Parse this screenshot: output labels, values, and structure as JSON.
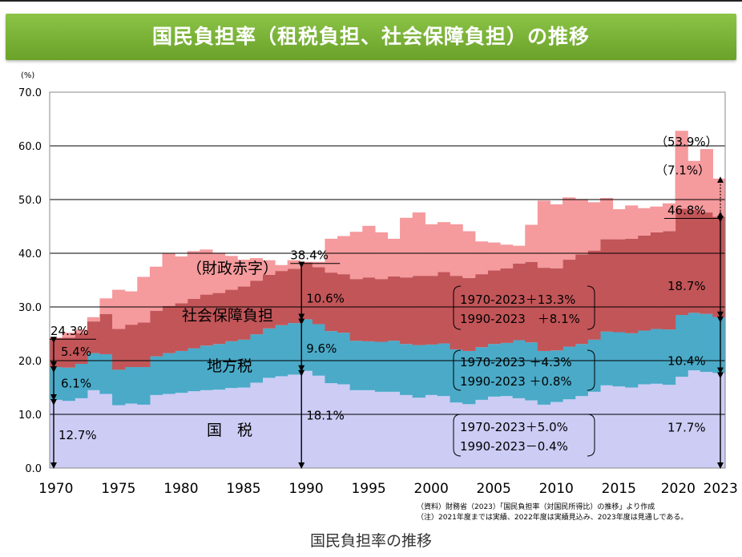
{
  "banner": {
    "title": "国民負担率（租税負担、社会保障負担）の推移"
  },
  "chart_data": {
    "type": "area",
    "title": "国民負担率（租税負担、社会保障負担）の推移",
    "ylabel": "(%)",
    "ylim": [
      0,
      70
    ],
    "yticks": [
      0,
      10,
      20,
      30,
      40,
      50,
      60,
      70
    ],
    "ytick_labels": [
      "0.0",
      "10.0",
      "20.0",
      "30.0",
      "40.0",
      "50.0",
      "60.0",
      "70.0"
    ],
    "xtick_labels": [
      "1970",
      "1975",
      "1980",
      "1985",
      "1990",
      "1995",
      "2000",
      "2005",
      "2010",
      "2015",
      "2020",
      "2023"
    ],
    "stacked": true,
    "x": [
      1970,
      1971,
      1972,
      1973,
      1974,
      1975,
      1976,
      1977,
      1978,
      1979,
      1980,
      1981,
      1982,
      1983,
      1984,
      1985,
      1986,
      1987,
      1988,
      1989,
      1990,
      1991,
      1992,
      1993,
      1994,
      1995,
      1996,
      1997,
      1998,
      1999,
      2000,
      2001,
      2002,
      2003,
      2004,
      2005,
      2006,
      2007,
      2008,
      2009,
      2010,
      2011,
      2012,
      2013,
      2014,
      2015,
      2016,
      2017,
      2018,
      2019,
      2020,
      2021,
      2022,
      2023
    ],
    "series": [
      {
        "name": "国税",
        "color": "#ccccf5",
        "values": [
          12.7,
          12.5,
          13.0,
          14.5,
          13.8,
          11.7,
          12.0,
          11.8,
          13.6,
          13.8,
          14.0,
          14.3,
          14.5,
          14.6,
          14.9,
          15.0,
          15.9,
          16.8,
          17.1,
          17.4,
          18.1,
          17.2,
          15.8,
          15.6,
          14.5,
          14.5,
          14.2,
          14.2,
          13.6,
          13.1,
          13.6,
          13.4,
          12.2,
          11.9,
          12.7,
          13.3,
          13.4,
          13.0,
          12.6,
          11.8,
          12.3,
          12.8,
          13.4,
          14.2,
          15.4,
          15.2,
          15.0,
          15.6,
          15.7,
          15.5,
          17.0,
          18.2,
          17.9,
          17.7
        ]
      },
      {
        "name": "地方税",
        "color": "#4aaac8",
        "values": [
          6.1,
          6.2,
          6.4,
          6.9,
          7.4,
          6.6,
          6.8,
          7.0,
          7.2,
          7.6,
          7.8,
          8.0,
          8.3,
          8.5,
          8.7,
          8.9,
          9.0,
          9.2,
          9.5,
          9.6,
          9.6,
          9.6,
          9.7,
          9.6,
          9.2,
          9.1,
          9.3,
          9.5,
          9.5,
          9.8,
          9.4,
          9.8,
          9.9,
          9.9,
          9.8,
          9.8,
          9.9,
          10.8,
          10.8,
          10.0,
          9.6,
          9.8,
          9.7,
          9.7,
          10.0,
          10.1,
          10.1,
          10.0,
          10.2,
          10.3,
          11.5,
          10.7,
          10.8,
          10.4
        ]
      },
      {
        "name": "社会保障負担",
        "color": "#c25558",
        "values": [
          5.4,
          5.6,
          5.7,
          5.9,
          7.5,
          7.6,
          7.9,
          8.3,
          8.5,
          8.8,
          8.9,
          9.2,
          9.5,
          9.5,
          9.6,
          9.9,
          10.0,
          10.0,
          10.1,
          10.1,
          10.6,
          10.6,
          10.9,
          10.9,
          11.5,
          11.9,
          11.7,
          12.0,
          12.4,
          12.9,
          12.8,
          13.3,
          13.7,
          13.6,
          13.6,
          13.7,
          13.9,
          14.3,
          15.0,
          15.5,
          15.3,
          16.2,
          16.7,
          16.6,
          17.2,
          17.3,
          17.6,
          17.7,
          18.0,
          18.3,
          19.8,
          19.2,
          18.9,
          18.7
        ]
      },
      {
        "name": "財政赤字",
        "color": "#f59a9d",
        "values": [
          0.1,
          0.9,
          0.7,
          0.8,
          2.9,
          7.3,
          6.2,
          8.5,
          8.2,
          9.8,
          8.7,
          8.9,
          8.4,
          7.5,
          6.3,
          5.0,
          4.2,
          2.7,
          1.1,
          1.6,
          0.1,
          1.0,
          6.3,
          7.1,
          8.8,
          9.6,
          8.7,
          7.0,
          11.1,
          11.8,
          9.6,
          9.3,
          9.6,
          8.7,
          6.1,
          5.2,
          4.4,
          3.3,
          6.9,
          12.5,
          11.9,
          11.6,
          10.3,
          9.0,
          7.7,
          5.6,
          6.2,
          5.1,
          4.8,
          5.2,
          14.5,
          9.1,
          11.8,
          7.1
        ]
      }
    ],
    "annotations": {
      "start_total": "24.3%",
      "start_social": "5.4%",
      "start_local": "6.1%",
      "start_national": "12.7%",
      "y1990_total": "38.4%",
      "y1990_social": "10.6%",
      "y1990_local": "9.6%",
      "y1990_national": "18.1%",
      "end_total": "（53.9%）",
      "end_deficit": "（7.1%）",
      "end_tax_social": "46.8%",
      "end_social": "18.7%",
      "end_local": "10.4%",
      "end_national": "17.7%",
      "label_deficit": "（財政赤字）",
      "label_social": "社会保障負担",
      "label_local": "地方税",
      "label_national": "国　税",
      "social_change_1": "1970-2023＋13.3%",
      "social_change_2": "1990-2023　＋8.1%",
      "local_change_1": "1970-2023 ＋4.3%",
      "local_change_2": "1990-2023 ＋0.8%",
      "national_change_1": "1970-2023＋5.0%",
      "national_change_2": "1990-2023－0.4%",
      "source_note": "（資料）財務省（2023）「国民負担率（対国民所得比）の推移」より作成",
      "footnote": "（注）2021年度までは実績、2022年度は実績見込み、2023年度は見通しである。"
    }
  },
  "caption": "国民負担率の推移"
}
